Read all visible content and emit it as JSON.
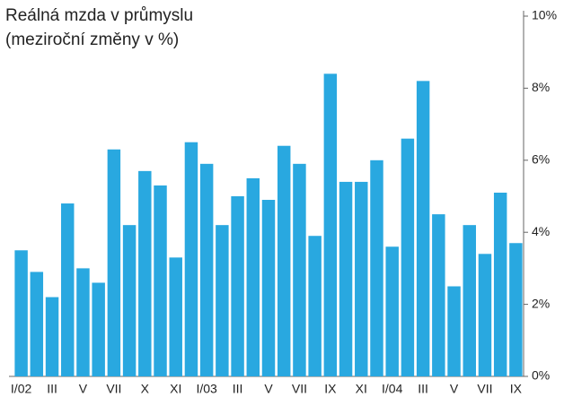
{
  "chart_data": {
    "type": "bar",
    "title": "Reálná mzda v průmyslu",
    "subtitle": "(meziroční změny v %)",
    "categories": [
      "I/02",
      null,
      "III",
      null,
      "V",
      null,
      "VII",
      null,
      "X",
      null,
      "XI",
      null,
      "I/03",
      null,
      "III",
      null,
      "V",
      null,
      "VII",
      null,
      "IX",
      null,
      "XI",
      null,
      "I/04",
      null,
      "III",
      null,
      "V",
      null,
      "VII",
      null,
      "IX"
    ],
    "values": [
      3.5,
      2.9,
      2.2,
      4.8,
      3.0,
      2.6,
      6.3,
      4.2,
      5.7,
      5.3,
      3.3,
      6.5,
      5.9,
      4.2,
      5.0,
      5.5,
      4.9,
      6.4,
      5.9,
      3.9,
      8.4,
      5.4,
      5.4,
      6.0,
      3.6,
      6.6,
      8.2,
      4.5,
      2.5,
      4.2,
      3.4,
      5.1,
      3.7
    ],
    "color": "#29a8e0",
    "ylim": [
      0,
      10
    ],
    "yticks": [
      {
        "value": 0,
        "label": "0%"
      },
      {
        "value": 2,
        "label": "2%"
      },
      {
        "value": 4,
        "label": "4%"
      },
      {
        "value": 6,
        "label": "6%"
      },
      {
        "value": 8,
        "label": "8%"
      },
      {
        "value": 10,
        "label": "10%"
      }
    ],
    "grid": false
  }
}
